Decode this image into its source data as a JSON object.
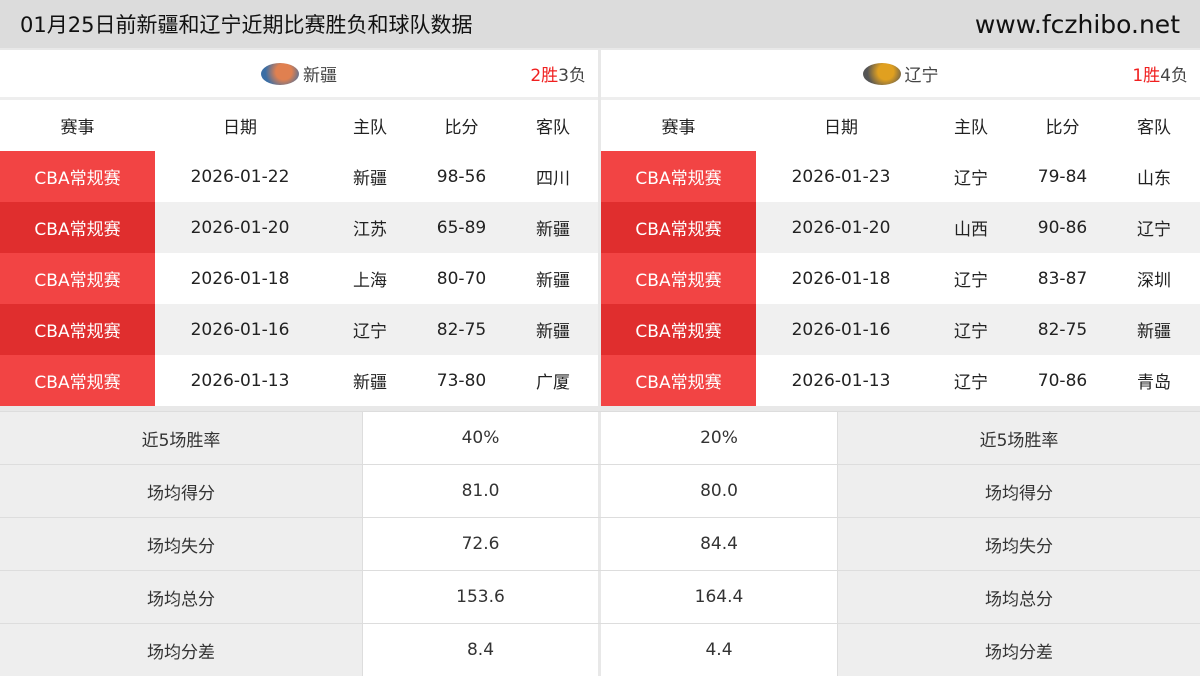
{
  "header": {
    "title": "01月25日前新疆和辽宁近期比赛胜负和球队数据",
    "site": "www.fczhibo.net"
  },
  "columns": [
    "赛事",
    "日期",
    "主队",
    "比分",
    "客队"
  ],
  "left": {
    "team": "新疆",
    "wins": "2胜",
    "losses": "3负",
    "logo_colors": [
      "#3a6ea5",
      "#e08050"
    ],
    "matches": [
      {
        "league": "CBA常规赛",
        "date": "2026-01-22",
        "home": "新疆",
        "score": "98-56",
        "away": "四川"
      },
      {
        "league": "CBA常规赛",
        "date": "2026-01-20",
        "home": "江苏",
        "score": "65-89",
        "away": "新疆"
      },
      {
        "league": "CBA常规赛",
        "date": "2026-01-18",
        "home": "上海",
        "score": "80-70",
        "away": "新疆"
      },
      {
        "league": "CBA常规赛",
        "date": "2026-01-16",
        "home": "辽宁",
        "score": "82-75",
        "away": "新疆"
      },
      {
        "league": "CBA常规赛",
        "date": "2026-01-13",
        "home": "新疆",
        "score": "73-80",
        "away": "广厦"
      }
    ]
  },
  "right": {
    "team": "辽宁",
    "wins": "1胜",
    "losses": "4负",
    "logo_colors": [
      "#555555",
      "#e0a020"
    ],
    "matches": [
      {
        "league": "CBA常规赛",
        "date": "2026-01-23",
        "home": "辽宁",
        "score": "79-84",
        "away": "山东"
      },
      {
        "league": "CBA常规赛",
        "date": "2026-01-20",
        "home": "山西",
        "score": "90-86",
        "away": "辽宁"
      },
      {
        "league": "CBA常规赛",
        "date": "2026-01-18",
        "home": "辽宁",
        "score": "83-87",
        "away": "深圳"
      },
      {
        "league": "CBA常规赛",
        "date": "2026-01-16",
        "home": "辽宁",
        "score": "82-75",
        "away": "新疆"
      },
      {
        "league": "CBA常规赛",
        "date": "2026-01-13",
        "home": "辽宁",
        "score": "70-86",
        "away": "青岛"
      }
    ]
  },
  "stats": [
    {
      "label": "近5场胜率",
      "left": "40%",
      "right": "20%"
    },
    {
      "label": "场均得分",
      "left": "81.0",
      "right": "80.0"
    },
    {
      "label": "场均失分",
      "left": "72.6",
      "right": "84.4"
    },
    {
      "label": "场均总分",
      "left": "153.6",
      "right": "164.4"
    },
    {
      "label": "场均分差",
      "left": "8.4",
      "right": "4.4"
    }
  ]
}
